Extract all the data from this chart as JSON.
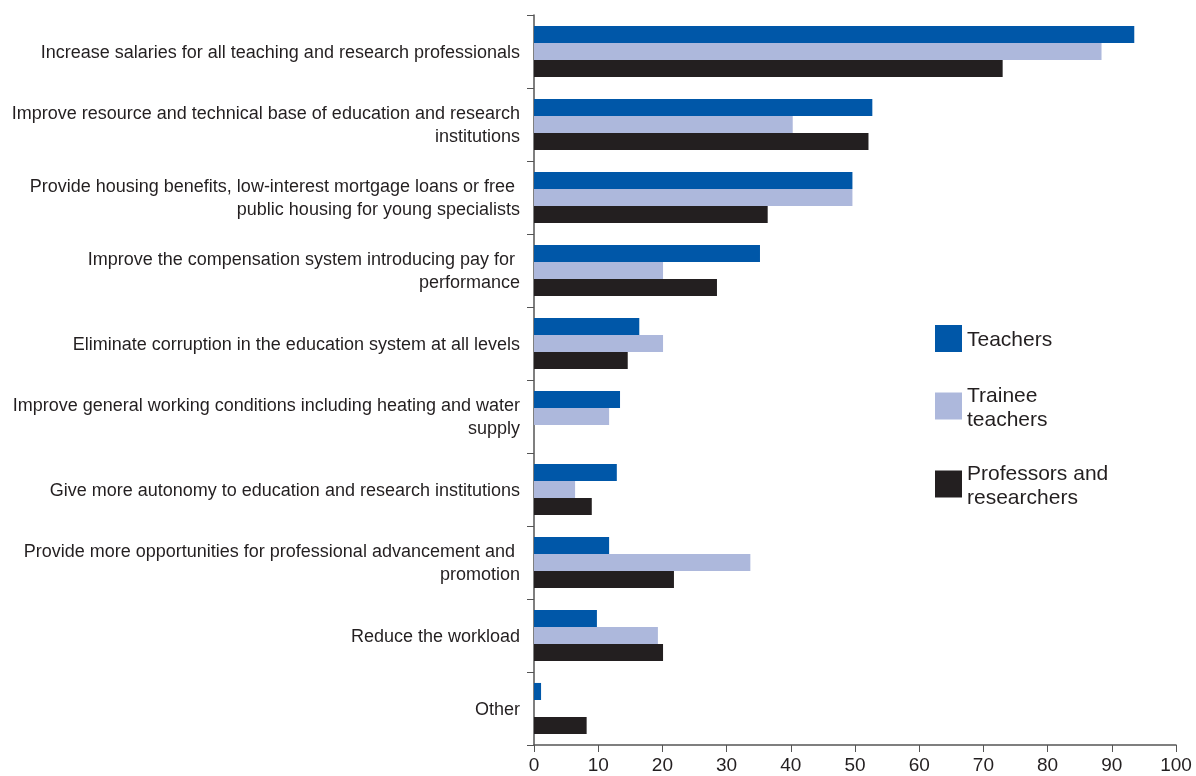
{
  "chart_data": {
    "type": "bar",
    "orientation": "horizontal",
    "categories": [
      "Increase salaries for all teaching and research professionals",
      "Improve resource and technical base of education and research institutions",
      "Provide housing benefits, low-interest mortgage loans or free public housing for young specialists",
      "Improve the compensation system introducing pay for performance",
      "Eliminate corruption in the education system at all levels",
      "Improve general working conditions including heating and water supply",
      "Give more autonomy to education and research institutions",
      "Provide more opportunities for professional advancement and promotion",
      "Reduce the workload",
      "Other"
    ],
    "series": [
      {
        "name": "Teachers",
        "color": "#0057a8",
        "values": [
          93.5,
          52.7,
          49.6,
          35.2,
          16.4,
          13.4,
          12.9,
          11.7,
          9.8,
          1.1
        ]
      },
      {
        "name": "Trainee teachers",
        "color": "#adb8dc",
        "values": [
          88.4,
          40.3,
          49.6,
          20.1,
          20.1,
          11.7,
          6.4,
          33.7,
          19.3,
          null
        ]
      },
      {
        "name": "Professors and researchers",
        "color": "#231f20",
        "values": [
          73.0,
          52.1,
          36.4,
          28.5,
          14.6,
          null,
          9.0,
          21.8,
          20.1,
          8.2
        ]
      }
    ],
    "xlim": [
      0,
      100
    ],
    "xticks": [
      0,
      10,
      20,
      30,
      40,
      50,
      60,
      70,
      80,
      90,
      100
    ],
    "grid": false,
    "legend": "right"
  }
}
